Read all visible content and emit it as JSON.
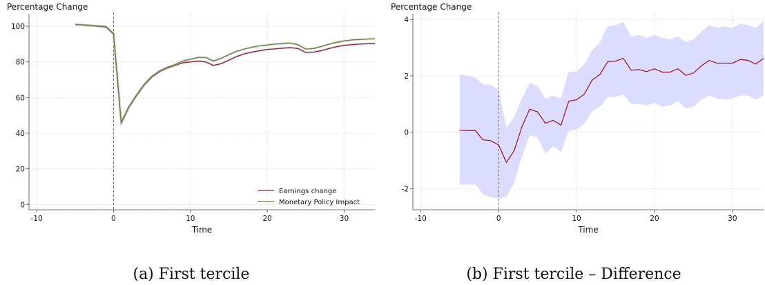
{
  "chart_data": [
    {
      "type": "line",
      "ylabel": "Percentage Change",
      "xlabel": "Time",
      "caption": "(a) First tercile",
      "xlim": [
        -11,
        34
      ],
      "ylim": [
        -3,
        107
      ],
      "xticks": [
        -10,
        0,
        10,
        20,
        30
      ],
      "yticks": [
        0,
        20,
        40,
        60,
        80,
        100
      ],
      "grid": true,
      "vline_at": 0,
      "legend_position": "bottom-right",
      "x": [
        -5,
        -4,
        -3,
        -2,
        -1,
        0,
        1,
        2,
        3,
        4,
        5,
        6,
        7,
        8,
        9,
        10,
        11,
        12,
        13,
        14,
        15,
        16,
        17,
        18,
        19,
        20,
        21,
        22,
        23,
        24,
        25,
        26,
        27,
        28,
        29,
        30,
        31,
        32,
        33,
        34
      ],
      "series": [
        {
          "name": "Earnings change",
          "color": "#9b1b30",
          "values": [
            101,
            100.7,
            100.3,
            99.9,
            99.5,
            95.5,
            45.5,
            54.5,
            61,
            67,
            71.5,
            74.5,
            76.5,
            78,
            79.5,
            80,
            80.5,
            80,
            78,
            79,
            81,
            83,
            84.5,
            85.5,
            86.3,
            87,
            87.3,
            87.7,
            88,
            87.5,
            85.3,
            85.5,
            86.3,
            87.5,
            88.5,
            89.3,
            89.7,
            90,
            90.2,
            90.2
          ]
        },
        {
          "name": "Monetary Policy Impact",
          "color": "#6b7d2a",
          "values": [
            101,
            100.8,
            100.5,
            100.2,
            99.9,
            96,
            46,
            55,
            61.5,
            67.5,
            72,
            75,
            77,
            78.5,
            80.5,
            81.5,
            82.5,
            82.5,
            80.5,
            82,
            84,
            86,
            87.2,
            88.2,
            89,
            89.5,
            90,
            90.3,
            90.6,
            89.6,
            87.2,
            87.5,
            88.6,
            89.9,
            91,
            91.8,
            92.3,
            92.6,
            92.8,
            93
          ]
        }
      ]
    },
    {
      "type": "area",
      "ylabel": "Percentage Change",
      "xlabel": "Time",
      "caption": "(b) First tercile – Difference",
      "xlim": [
        -11,
        34
      ],
      "ylim": [
        -2.75,
        4.2
      ],
      "xticks": [
        -10,
        0,
        10,
        20,
        30
      ],
      "yticks": [
        -2,
        0,
        2,
        4
      ],
      "grid": true,
      "vline_at": 0,
      "x": [
        -5,
        -4,
        -3,
        -2,
        -1,
        0,
        1,
        2,
        3,
        4,
        5,
        6,
        7,
        8,
        9,
        10,
        11,
        12,
        13,
        14,
        15,
        16,
        17,
        18,
        19,
        20,
        21,
        22,
        23,
        24,
        25,
        26,
        27,
        28,
        29,
        30,
        31,
        32,
        33,
        34
      ],
      "series": [
        {
          "color": "#9b1b30",
          "values": [
            0.08,
            0.06,
            0.06,
            -0.27,
            -0.3,
            -0.45,
            -1.07,
            -0.65,
            0.2,
            0.82,
            0.72,
            0.32,
            0.42,
            0.25,
            1.1,
            1.15,
            1.35,
            1.85,
            2.05,
            2.5,
            2.52,
            2.62,
            2.2,
            2.22,
            2.15,
            2.25,
            2.13,
            2.13,
            2.25,
            2.02,
            2.1,
            2.35,
            2.55,
            2.45,
            2.45,
            2.45,
            2.58,
            2.55,
            2.42,
            2.62
          ]
        }
      ],
      "band_color": "#dcdcff",
      "band_upper": [
        2.05,
        2.0,
        1.95,
        1.7,
        1.68,
        1.5,
        0.15,
        0.55,
        1.2,
        1.75,
        1.65,
        1.2,
        1.3,
        1.2,
        2.15,
        2.15,
        2.4,
        2.9,
        3.2,
        3.75,
        3.8,
        3.9,
        3.4,
        3.45,
        3.35,
        3.45,
        3.35,
        3.3,
        3.4,
        3.2,
        3.3,
        3.55,
        3.8,
        3.7,
        3.75,
        3.7,
        3.85,
        3.8,
        3.7,
        3.95
      ],
      "band_lower": [
        -1.85,
        -1.85,
        -1.85,
        -2.2,
        -2.3,
        -2.35,
        -2.3,
        -1.8,
        -0.85,
        -0.1,
        -0.2,
        -0.75,
        -0.5,
        -0.7,
        0.05,
        0.1,
        0.3,
        0.75,
        0.9,
        1.25,
        1.25,
        1.35,
        1.0,
        1.0,
        0.95,
        1.05,
        0.9,
        0.95,
        1.1,
        0.85,
        0.9,
        1.15,
        1.3,
        1.2,
        1.15,
        1.2,
        1.3,
        1.3,
        1.15,
        1.3
      ]
    }
  ]
}
